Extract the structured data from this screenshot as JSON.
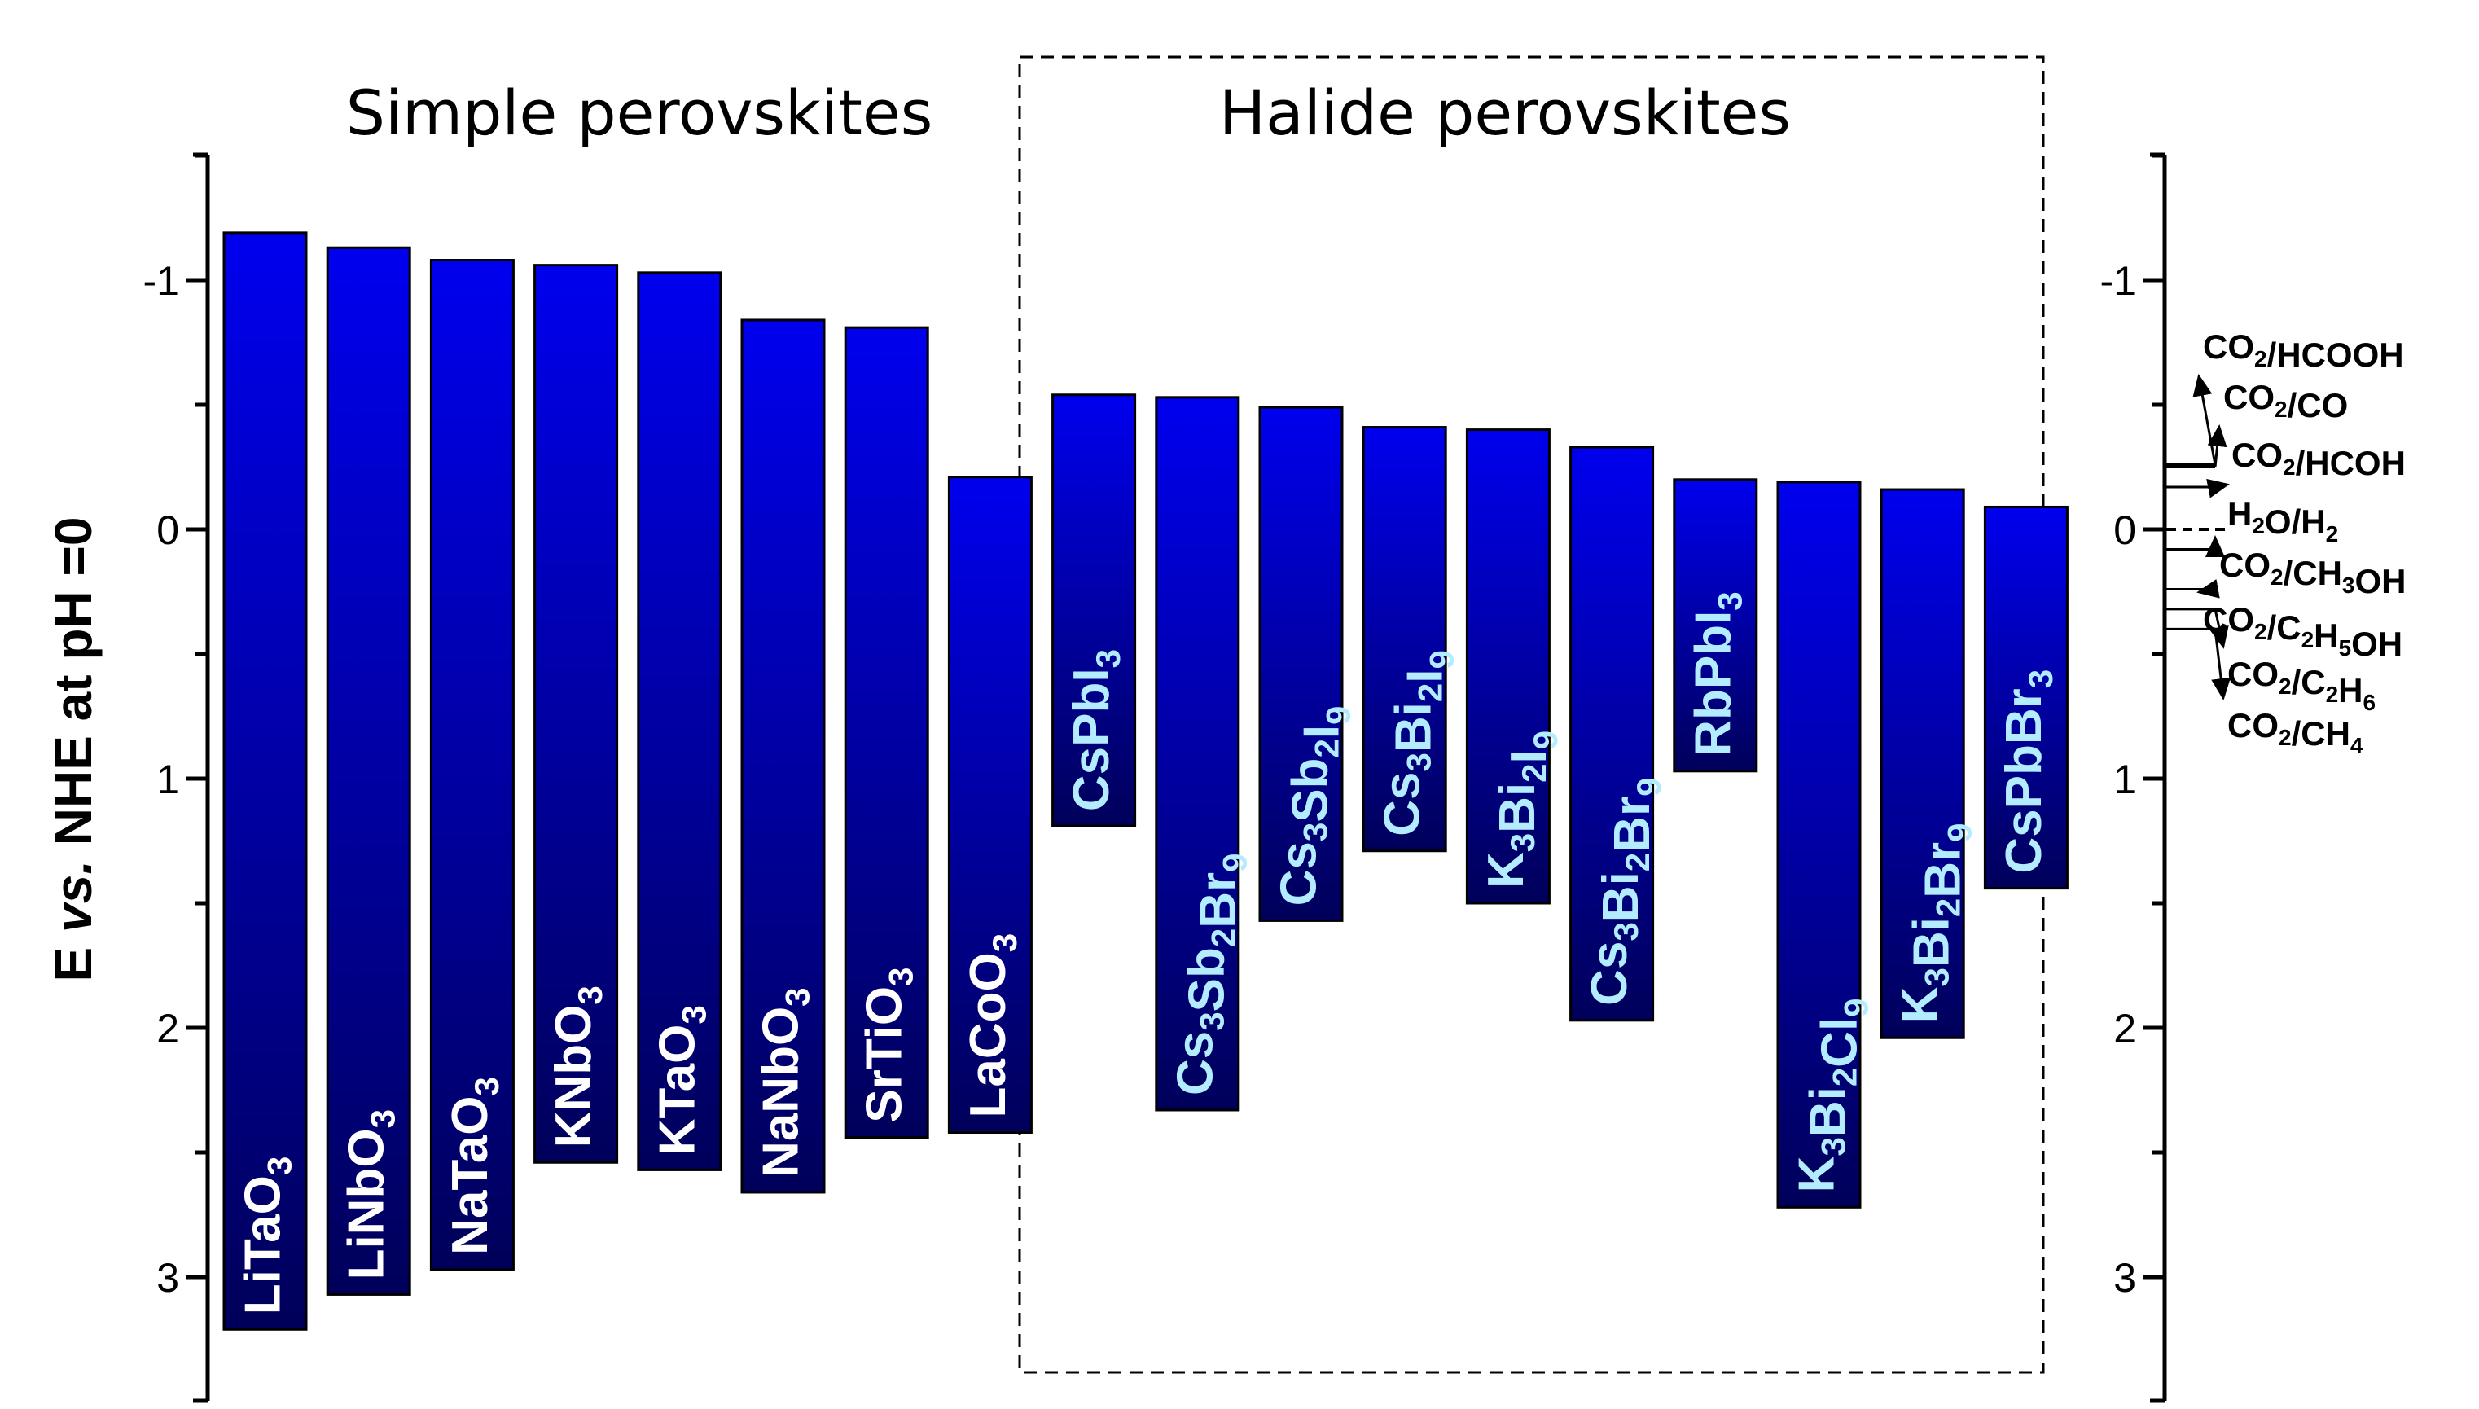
{
  "chart_data": {
    "type": "bar",
    "title": "",
    "ylabel_parts": [
      "E ",
      "vs.",
      " NHE at pH =0"
    ],
    "ylim": [
      -1.5,
      3.5
    ],
    "y_inverted": true,
    "yticks": [
      -1,
      0,
      1,
      2,
      3
    ],
    "ytick_labels": [
      "-1",
      "0",
      "1",
      "2",
      "3"
    ],
    "groups": [
      {
        "label": "Simple perovskites",
        "boxed": false
      },
      {
        "label": "Halide perovskites",
        "boxed": true
      }
    ],
    "bar_fill_top": "#0000ee",
    "bar_fill_bottom": "#00005a",
    "label_colors": {
      "simple": "#ffffff",
      "halide": "#b3ecff"
    },
    "bars": [
      {
        "group": 0,
        "label": "LiTaO3",
        "cb": -1.19,
        "vb": 3.21
      },
      {
        "group": 0,
        "label": "LiNbO3",
        "cb": -1.13,
        "vb": 3.07
      },
      {
        "group": 0,
        "label": "NaTaO3",
        "cb": -1.08,
        "vb": 2.97
      },
      {
        "group": 0,
        "label": "KNbO3",
        "cb": -1.06,
        "vb": 2.54
      },
      {
        "group": 0,
        "label": "KTaO3",
        "cb": -1.03,
        "vb": 2.57
      },
      {
        "group": 0,
        "label": "NaNbO3",
        "cb": -0.84,
        "vb": 2.66
      },
      {
        "group": 0,
        "label": "SrTiO3",
        "cb": -0.81,
        "vb": 2.44
      },
      {
        "group": 0,
        "label": "LaCoO3",
        "cb": -0.21,
        "vb": 2.42
      },
      {
        "group": 1,
        "label": "CsPbI3",
        "cb": -0.54,
        "vb": 1.19
      },
      {
        "group": 1,
        "label": "Cs3Sb2Br9",
        "cb": -0.53,
        "vb": 2.33
      },
      {
        "group": 1,
        "label": "Cs3Sb2I9",
        "cb": -0.49,
        "vb": 1.57
      },
      {
        "group": 1,
        "label": "Cs3Bi2I9",
        "cb": -0.41,
        "vb": 1.29
      },
      {
        "group": 1,
        "label": "K3Bi2I9",
        "cb": -0.4,
        "vb": 1.5
      },
      {
        "group": 1,
        "label": "Cs3Bi2Br9",
        "cb": -0.33,
        "vb": 1.97
      },
      {
        "group": 1,
        "label": "RbPbI3",
        "cb": -0.2,
        "vb": 0.97
      },
      {
        "group": 1,
        "label": "K3Bi2Cl9",
        "cb": -0.19,
        "vb": 2.72
      },
      {
        "group": 1,
        "label": "K3Bi2Br9",
        "cb": -0.16,
        "vb": 2.04
      },
      {
        "group": 1,
        "label": "CsPbBr3",
        "cb": -0.09,
        "vb": 1.44
      }
    ],
    "bar_label_parts": [
      [
        [
          "LiTaO",
          false
        ],
        [
          "3",
          true
        ]
      ],
      [
        [
          "LiNbO",
          false
        ],
        [
          "3",
          true
        ]
      ],
      [
        [
          "NaTaO",
          false
        ],
        [
          "3",
          true
        ]
      ],
      [
        [
          "KNbO",
          false
        ],
        [
          "3",
          true
        ]
      ],
      [
        [
          "KTaO",
          false
        ],
        [
          "3",
          true
        ]
      ],
      [
        [
          "NaNbO",
          false
        ],
        [
          "3",
          true
        ]
      ],
      [
        [
          "SrTiO",
          false
        ],
        [
          "3",
          true
        ]
      ],
      [
        [
          "LaCoO",
          false
        ],
        [
          "3",
          true
        ]
      ],
      [
        [
          "CsPbI",
          false
        ],
        [
          "3",
          true
        ]
      ],
      [
        [
          "Cs",
          false
        ],
        [
          "3",
          true
        ],
        [
          "Sb",
          false
        ],
        [
          "2",
          true
        ],
        [
          "Br",
          false
        ],
        [
          "9",
          true
        ]
      ],
      [
        [
          "Cs",
          false
        ],
        [
          "3",
          true
        ],
        [
          "Sb",
          false
        ],
        [
          "2",
          true
        ],
        [
          "I",
          false
        ],
        [
          "9",
          true
        ]
      ],
      [
        [
          "Cs",
          false
        ],
        [
          "3",
          true
        ],
        [
          "Bi",
          false
        ],
        [
          "2",
          true
        ],
        [
          "I",
          false
        ],
        [
          "9",
          true
        ]
      ],
      [
        [
          "K",
          false
        ],
        [
          "3",
          true
        ],
        [
          "Bi",
          false
        ],
        [
          "2",
          true
        ],
        [
          "I",
          false
        ],
        [
          "9",
          true
        ]
      ],
      [
        [
          "Cs",
          false
        ],
        [
          "3",
          true
        ],
        [
          "Bi",
          false
        ],
        [
          "2",
          true
        ],
        [
          "Br",
          false
        ],
        [
          "9",
          true
        ]
      ],
      [
        [
          "RbPbI",
          false
        ],
        [
          "3",
          true
        ]
      ],
      [
        [
          "K",
          false
        ],
        [
          "3",
          true
        ],
        [
          "Bi",
          false
        ],
        [
          "2",
          true
        ],
        [
          "Cl",
          false
        ],
        [
          "9",
          true
        ]
      ],
      [
        [
          "K",
          false
        ],
        [
          "3",
          true
        ],
        [
          "Bi",
          false
        ],
        [
          "2",
          true
        ],
        [
          "Br",
          false
        ],
        [
          "9",
          true
        ]
      ],
      [
        [
          "CsPbBr",
          false
        ],
        [
          "3",
          true
        ]
      ]
    ],
    "redox_levels": [
      {
        "label": "CO2/HCOOH",
        "parts": [
          [
            "CO",
            false
          ],
          [
            "2",
            true
          ],
          [
            "/HCOOH",
            false
          ]
        ],
        "potential": -0.26,
        "style": "arrow"
      },
      {
        "label": "CO2/CO",
        "parts": [
          [
            "CO",
            false
          ],
          [
            "2",
            true
          ],
          [
            "/CO",
            false
          ]
        ],
        "potential": -0.25,
        "style": "arrow"
      },
      {
        "label": "CO2/HCOH",
        "parts": [
          [
            "CO",
            false
          ],
          [
            "2",
            true
          ],
          [
            "/HCOH",
            false
          ]
        ],
        "potential": -0.17,
        "style": "arrow"
      },
      {
        "label": "H2O/H2",
        "parts": [
          [
            "H",
            false
          ],
          [
            "2",
            true
          ],
          [
            "O/H",
            false
          ],
          [
            "2",
            true
          ]
        ],
        "potential": 0.0,
        "style": "dashed"
      },
      {
        "label": "CO2/CH3OH",
        "parts": [
          [
            "CO",
            false
          ],
          [
            "2",
            true
          ],
          [
            "/CH",
            false
          ],
          [
            "3",
            true
          ],
          [
            "OH",
            false
          ]
        ],
        "potential": 0.08,
        "style": "arrow"
      },
      {
        "label": "CO2/C2H5OH",
        "parts": [
          [
            "CO",
            false
          ],
          [
            "2",
            true
          ],
          [
            "/C",
            false
          ],
          [
            "2",
            true
          ],
          [
            "H",
            false
          ],
          [
            "5",
            true
          ],
          [
            "OH",
            false
          ]
        ],
        "potential": 0.24,
        "style": "arrow"
      },
      {
        "label": "CO2/C2H6",
        "parts": [
          [
            "CO",
            false
          ],
          [
            "2",
            true
          ],
          [
            "/C",
            false
          ],
          [
            "2",
            true
          ],
          [
            "H",
            false
          ],
          [
            "6",
            true
          ]
        ],
        "potential": 0.32,
        "style": "arrow"
      },
      {
        "label": "CO2/CH4",
        "parts": [
          [
            "CO",
            false
          ],
          [
            "2",
            true
          ],
          [
            "/CH",
            false
          ],
          [
            "4",
            true
          ]
        ],
        "potential": 0.4,
        "style": "arrow"
      }
    ]
  }
}
